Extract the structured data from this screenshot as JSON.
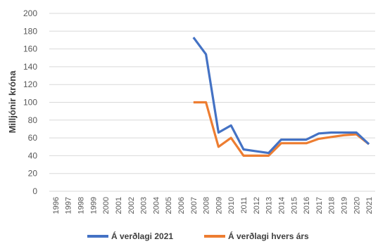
{
  "chart_data": {
    "type": "line",
    "ylabel": "Milljónir króna",
    "ylim": [
      0,
      200
    ],
    "yticks": [
      0,
      20,
      40,
      60,
      80,
      100,
      120,
      140,
      160,
      180,
      200
    ],
    "categories": [
      "1996",
      "1997",
      "1998",
      "1999",
      "2000",
      "2001",
      "2002",
      "2003",
      "2004",
      "2005",
      "2006",
      "2007",
      "2008",
      "2009",
      "2010",
      "2011",
      "2012",
      "2013",
      "2014",
      "2015",
      "2016",
      "2017",
      "2018",
      "2019",
      "2020",
      "2021"
    ],
    "grid": true,
    "legend_position": "bottom",
    "series": [
      {
        "name": "Á verðlagi 2021",
        "color": "#4472c4",
        "values": [
          null,
          null,
          null,
          null,
          null,
          null,
          null,
          null,
          null,
          null,
          null,
          173,
          154,
          66,
          74,
          47,
          45,
          43,
          58,
          58,
          58,
          65,
          66,
          66,
          66,
          53
        ]
      },
      {
        "name": "Á verðlagi hvers árs",
        "color": "#ed7d31",
        "values": [
          null,
          null,
          null,
          null,
          null,
          null,
          null,
          null,
          null,
          null,
          null,
          100,
          100,
          50,
          60,
          40,
          40,
          40,
          54,
          54,
          54,
          59,
          61,
          63,
          64,
          53
        ]
      }
    ]
  }
}
